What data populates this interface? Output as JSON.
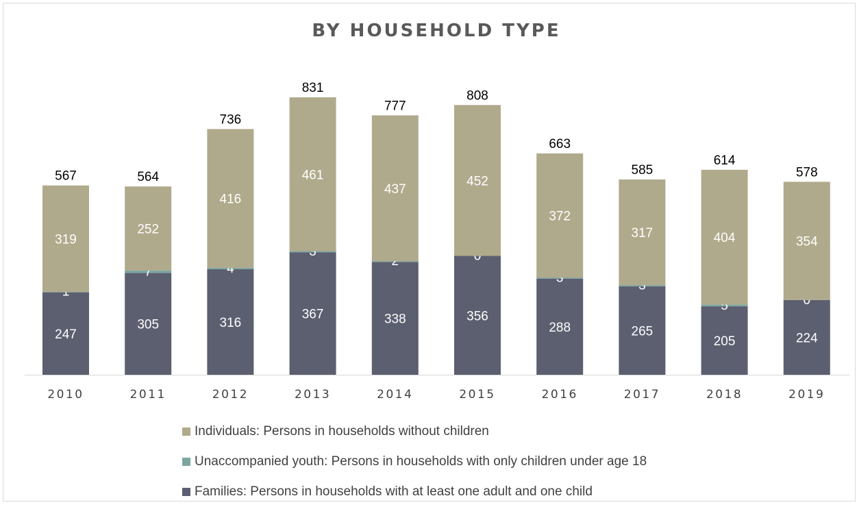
{
  "chart_data": {
    "type": "bar",
    "stacked": true,
    "title": "BY HOUSEHOLD TYPE",
    "xlabel": "",
    "ylabel": "",
    "grid": false,
    "legend_position": "bottom",
    "categories": [
      "2010",
      "2011",
      "2012",
      "2013",
      "2014",
      "2015",
      "2016",
      "2017",
      "2018",
      "2019"
    ],
    "series": [
      {
        "name": "Families: Persons in households with at least one adult and one child",
        "color": "#5c5f6f",
        "values": [
          247,
          305,
          316,
          367,
          338,
          356,
          288,
          265,
          205,
          224
        ]
      },
      {
        "name": "Unaccompanied youth: Persons in households with only children under age 18",
        "color": "#7ba7a3",
        "values": [
          1,
          7,
          4,
          3,
          2,
          0,
          3,
          3,
          5,
          0
        ]
      },
      {
        "name": "Individuals: Persons in households without children",
        "color": "#b0aa8c",
        "values": [
          319,
          252,
          416,
          461,
          437,
          452,
          372,
          317,
          404,
          354
        ]
      }
    ],
    "totals": [
      567,
      564,
      736,
      831,
      777,
      808,
      663,
      585,
      614,
      578
    ],
    "legend_order": [
      2,
      1,
      0
    ]
  }
}
